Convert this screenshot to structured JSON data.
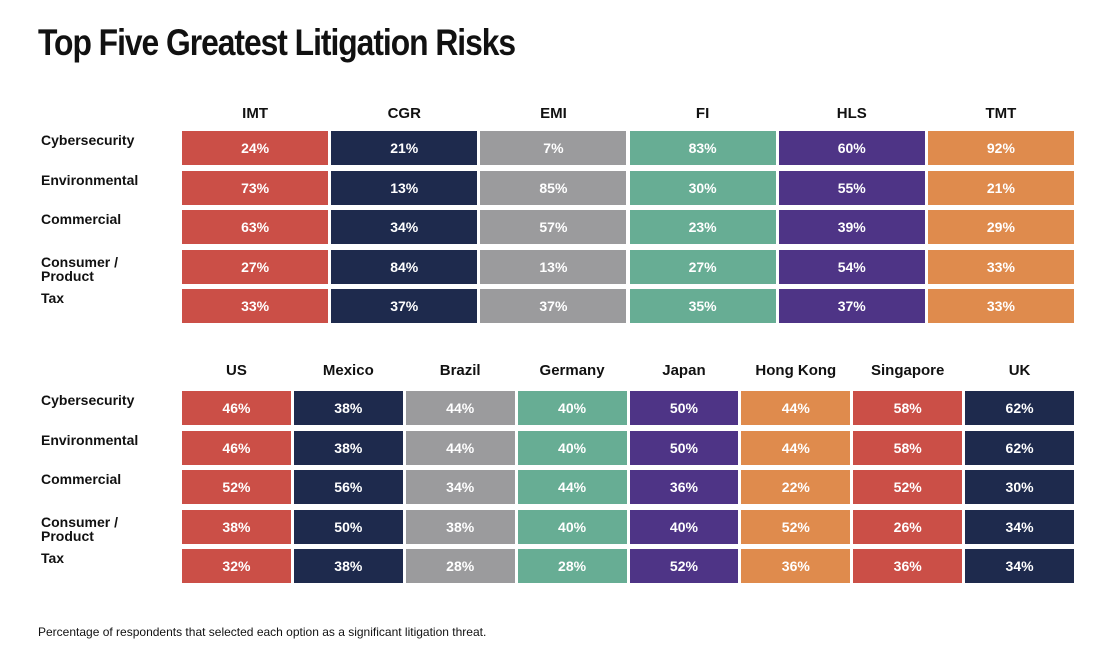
{
  "title": "Top Five Greatest Litigation Risks",
  "note": "Percentage of respondents that selected each option as a significant litigation threat.",
  "colors": {
    "red": "#cb4f47",
    "navy": "#1e2a4d",
    "gray": "#9b9b9d",
    "teal": "#67ad94",
    "purple": "#4e3486",
    "orange": "#df8b4d"
  },
  "chart_data": [
    {
      "type": "table",
      "title": "Top Five Greatest Litigation Risks",
      "columns": [
        "IMT",
        "CGR",
        "EMI",
        "FI",
        "HLS",
        "TMT"
      ],
      "column_colors": [
        "red",
        "navy",
        "gray",
        "teal",
        "purple",
        "orange"
      ],
      "rows": [
        {
          "label": "Cybersecurity",
          "values": [
            "24%",
            "21%",
            "7%",
            "83%",
            "60%",
            "92%"
          ]
        },
        {
          "label": "Environmental",
          "values": [
            "73%",
            "13%",
            "85%",
            "30%",
            "55%",
            "21%"
          ]
        },
        {
          "label": "Commercial",
          "values": [
            "63%",
            "34%",
            "57%",
            "23%",
            "39%",
            "29%"
          ]
        },
        {
          "label": "Consumer / Product",
          "values": [
            "27%",
            "84%",
            "13%",
            "27%",
            "54%",
            "33%"
          ]
        },
        {
          "label": "Tax",
          "values": [
            "33%",
            "37%",
            "37%",
            "35%",
            "37%",
            "33%"
          ]
        }
      ]
    },
    {
      "type": "table",
      "columns": [
        "US",
        "Mexico",
        "Brazil",
        "Germany",
        "Japan",
        "Hong Kong",
        "Singapore",
        "UK"
      ],
      "column_colors": [
        "red",
        "navy",
        "gray",
        "teal",
        "purple",
        "orange",
        "red",
        "navy"
      ],
      "rows": [
        {
          "label": "Cybersecurity",
          "values": [
            "46%",
            "38%",
            "44%",
            "40%",
            "50%",
            "44%",
            "58%",
            "62%"
          ]
        },
        {
          "label": "Environmental",
          "values": [
            "46%",
            "38%",
            "44%",
            "40%",
            "50%",
            "44%",
            "58%",
            "62%"
          ]
        },
        {
          "label": "Commercial",
          "values": [
            "52%",
            "56%",
            "34%",
            "44%",
            "36%",
            "22%",
            "52%",
            "30%"
          ]
        },
        {
          "label": "Consumer / Product",
          "values": [
            "38%",
            "50%",
            "38%",
            "40%",
            "40%",
            "52%",
            "26%",
            "34%"
          ]
        },
        {
          "label": "Tax",
          "values": [
            "32%",
            "38%",
            "28%",
            "28%",
            "52%",
            "36%",
            "36%",
            "34%"
          ]
        }
      ]
    }
  ]
}
